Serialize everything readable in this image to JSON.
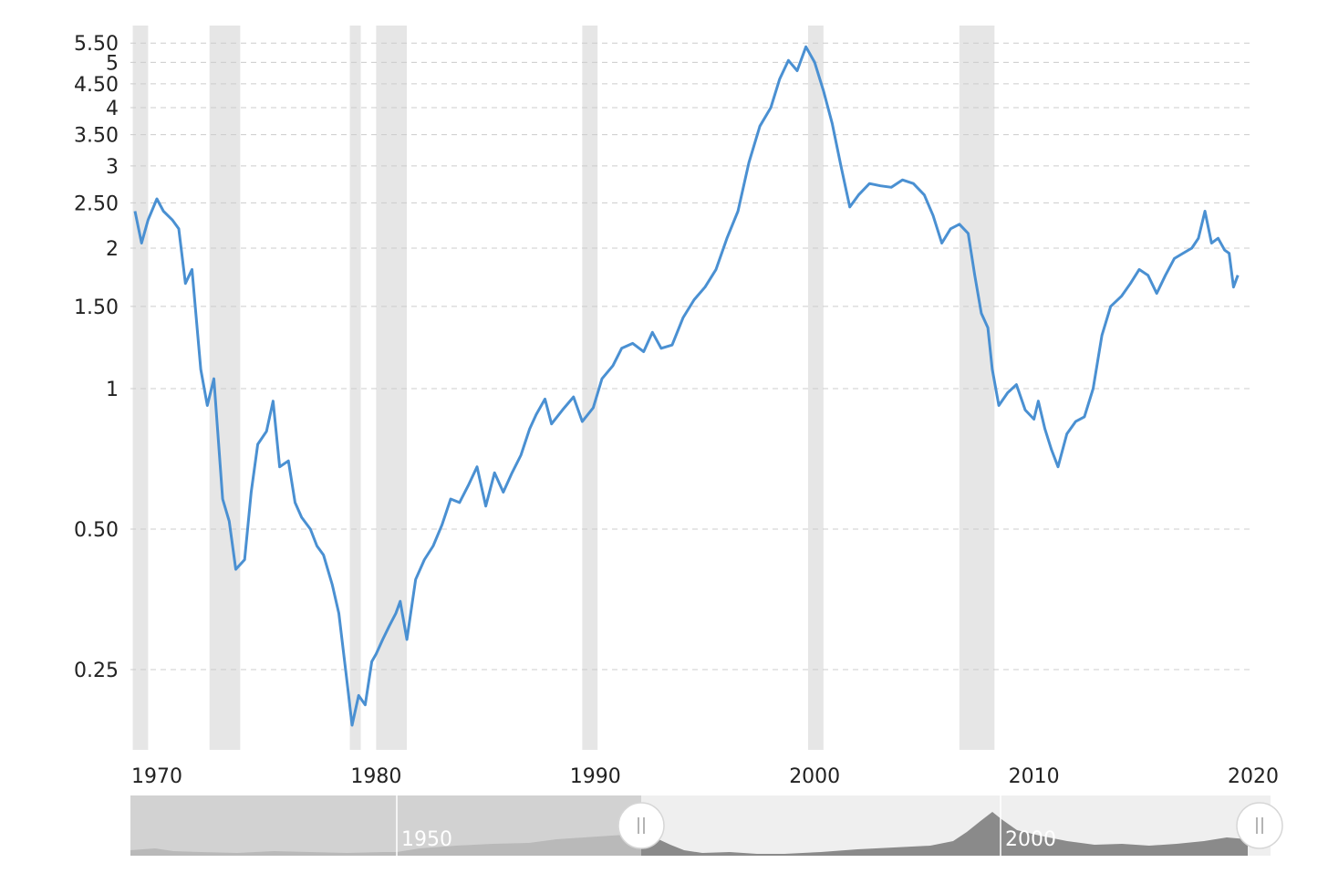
{
  "chart_data": {
    "type": "line",
    "title": "",
    "xlabel": "",
    "ylabel": "",
    "y_scale": "log",
    "ylim": [
      0.19,
      5.9
    ],
    "xlim": [
      1968.9,
      2021.5
    ],
    "grid": true,
    "y_ticks": [
      {
        "value": 5.5,
        "label": "5.50"
      },
      {
        "value": 5,
        "label": "5"
      },
      {
        "value": 4.5,
        "label": "4.50"
      },
      {
        "value": 4,
        "label": "4"
      },
      {
        "value": 3.5,
        "label": "3.50"
      },
      {
        "value": 3,
        "label": "3"
      },
      {
        "value": 2.5,
        "label": "2.50"
      },
      {
        "value": 2,
        "label": "2"
      },
      {
        "value": 1.5,
        "label": "1.50"
      },
      {
        "value": 1,
        "label": "1"
      },
      {
        "value": 0.5,
        "label": "0.50"
      },
      {
        "value": 0.25,
        "label": "0.25"
      }
    ],
    "x_ticks": [
      {
        "value": 1970,
        "label": "1970"
      },
      {
        "value": 1980,
        "label": "1980"
      },
      {
        "value": 1990,
        "label": "1990"
      },
      {
        "value": 2000,
        "label": "2000"
      },
      {
        "value": 2010,
        "label": "2010"
      },
      {
        "value": 2020,
        "label": "2020"
      }
    ],
    "shaded_periods": [
      [
        1968.9,
        1969.6
      ],
      [
        1972.4,
        1973.8
      ],
      [
        1978.8,
        1979.3
      ],
      [
        1980.0,
        1981.4
      ],
      [
        1989.4,
        1990.1
      ],
      [
        1999.7,
        2000.4
      ],
      [
        2006.6,
        2008.2
      ]
    ],
    "line_color": "#4a90d2",
    "series": [
      {
        "x": [
          1969.0,
          1969.3,
          1969.6,
          1970.0,
          1970.3,
          1970.7,
          1971.0,
          1971.3,
          1971.6,
          1972.0,
          1972.3,
          1972.6,
          1973.0,
          1973.3,
          1973.6,
          1974.0,
          1974.3,
          1974.6,
          1975.0,
          1975.3,
          1975.6,
          1976.0,
          1976.3,
          1976.6,
          1977.0,
          1977.3,
          1977.6,
          1978.0,
          1978.3,
          1978.7,
          1978.9,
          1979.2,
          1979.5,
          1979.8,
          1980.0,
          1980.3,
          1980.6,
          1980.9,
          1981.1,
          1981.4,
          1981.8,
          1982.2,
          1982.6,
          1983.0,
          1983.4,
          1983.8,
          1984.2,
          1984.6,
          1985.0,
          1985.4,
          1985.8,
          1986.2,
          1986.6,
          1987.0,
          1987.3,
          1987.7,
          1988.0,
          1988.5,
          1989.0,
          1989.4,
          1989.9,
          1990.3,
          1990.8,
          1991.2,
          1991.7,
          1992.2,
          1992.6,
          1993.0,
          1993.5,
          1994.0,
          1994.5,
          1995.0,
          1995.5,
          1996.0,
          1996.5,
          1997.0,
          1997.5,
          1998.0,
          1998.4,
          1998.8,
          1999.2,
          1999.6,
          2000.0,
          2000.4,
          2000.8,
          2001.2,
          2001.6,
          2002.0,
          2002.5,
          2003.0,
          2003.5,
          2004.0,
          2004.5,
          2005.0,
          2005.4,
          2005.8,
          2006.2,
          2006.6,
          2007.0,
          2007.3,
          2007.6,
          2007.9,
          2008.1,
          2008.4,
          2008.8,
          2009.2,
          2009.6,
          2010.0,
          2010.2,
          2010.5,
          2010.8,
          2011.1,
          2011.5,
          2011.9,
          2012.3,
          2012.7,
          2013.1,
          2013.5,
          2014.0,
          2014.4,
          2014.8,
          2015.2,
          2015.6,
          2016.0,
          2016.4,
          2016.8,
          2017.2,
          2017.5,
          2017.8,
          2018.1,
          2018.4,
          2018.7,
          2018.9,
          2019.1,
          2019.3
        ],
        "values": [
          2.4,
          2.05,
          2.3,
          2.55,
          2.4,
          2.3,
          2.2,
          1.68,
          1.8,
          1.1,
          0.92,
          1.05,
          0.58,
          0.52,
          0.41,
          0.43,
          0.6,
          0.76,
          0.81,
          0.94,
          0.68,
          0.7,
          0.57,
          0.53,
          0.5,
          0.46,
          0.44,
          0.38,
          0.33,
          0.23,
          0.19,
          0.22,
          0.21,
          0.26,
          0.27,
          0.29,
          0.31,
          0.33,
          0.35,
          0.29,
          0.39,
          0.43,
          0.46,
          0.51,
          0.58,
          0.57,
          0.62,
          0.68,
          0.56,
          0.66,
          0.6,
          0.66,
          0.72,
          0.82,
          0.88,
          0.95,
          0.84,
          0.9,
          0.96,
          0.85,
          0.91,
          1.05,
          1.12,
          1.22,
          1.25,
          1.2,
          1.32,
          1.22,
          1.24,
          1.42,
          1.55,
          1.65,
          1.8,
          2.1,
          2.4,
          3.05,
          3.65,
          4.0,
          4.6,
          5.05,
          4.8,
          5.4,
          5.0,
          4.35,
          3.7,
          3.0,
          2.45,
          2.6,
          2.75,
          2.72,
          2.7,
          2.8,
          2.75,
          2.6,
          2.35,
          2.05,
          2.2,
          2.25,
          2.15,
          1.75,
          1.45,
          1.35,
          1.1,
          0.92,
          0.98,
          1.02,
          0.9,
          0.86,
          0.94,
          0.82,
          0.74,
          0.68,
          0.8,
          0.85,
          0.87,
          1.0,
          1.3,
          1.5,
          1.58,
          1.68,
          1.8,
          1.75,
          1.6,
          1.75,
          1.9,
          1.95,
          2.0,
          2.1,
          2.4,
          2.05,
          2.1,
          1.98,
          1.95,
          1.65,
          1.75
        ]
      }
    ]
  },
  "navigator": {
    "labels": [
      "1950",
      "2000"
    ]
  }
}
